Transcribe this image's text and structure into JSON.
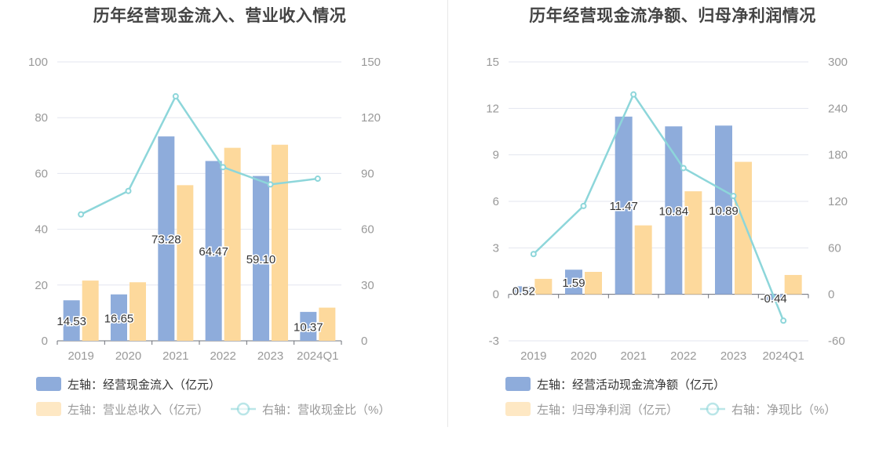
{
  "charts": [
    {
      "title": "历年经营现金流入、营业收入情况",
      "chart_data": {
        "type": "bar",
        "categories": [
          "2019",
          "2020",
          "2021",
          "2022",
          "2023",
          "2024Q1"
        ],
        "left_axis": {
          "ylim": [
            0,
            100
          ],
          "ticks": [
            "0",
            "20",
            "40",
            "60",
            "80",
            "100"
          ]
        },
        "right_axis": {
          "ylim": [
            0,
            150
          ],
          "ticks": [
            "0",
            "30",
            "60",
            "90",
            "120",
            "150"
          ]
        },
        "grid": true,
        "legend_position": "bottom-left",
        "series": [
          {
            "name": "左轴：经营现金流入（亿元）",
            "type": "bar",
            "axis": "left",
            "color": "#8eacdb",
            "values": [
              14.53,
              16.65,
              73.28,
              64.47,
              59.1,
              10.37
            ],
            "labels": [
              "14.53",
              "16.65",
              "73.28",
              "64.47",
              "59.10",
              "10.37"
            ]
          },
          {
            "name": "左轴：营业总收入（亿元）",
            "type": "bar",
            "axis": "left",
            "color": "#fdd99c",
            "values": [
              21.6,
              21.0,
              55.8,
              69.2,
              70.3,
              11.9
            ]
          },
          {
            "name": "右轴：营收现金比（%）",
            "type": "line",
            "axis": "right",
            "color": "#8dd6da",
            "values": [
              68.0,
              80.6,
              131.5,
              93.4,
              84.1,
              87.2
            ]
          }
        ]
      }
    },
    {
      "title": "历年经营现金流净额、归母净利润情况",
      "chart_data": {
        "type": "bar",
        "categories": [
          "2019",
          "2020",
          "2021",
          "2022",
          "2023",
          "2024Q1"
        ],
        "left_axis": {
          "ylim": [
            -3,
            15
          ],
          "ticks": [
            "-3",
            "0",
            "3",
            "6",
            "9",
            "12",
            "15"
          ]
        },
        "right_axis": {
          "ylim": [
            -60,
            300
          ],
          "ticks": [
            "-60",
            "0",
            "60",
            "120",
            "180",
            "240",
            "300"
          ]
        },
        "grid": true,
        "legend_position": "bottom-left",
        "series": [
          {
            "name": "左轴：经营活动现金流净额（亿元）",
            "type": "bar",
            "axis": "left",
            "color": "#8eacdb",
            "values": [
              0.52,
              1.59,
              11.47,
              10.84,
              10.89,
              -0.44
            ],
            "labels": [
              "0.52",
              "1.59",
              "11.47",
              "10.84",
              "10.89",
              "-0.44"
            ]
          },
          {
            "name": "左轴：归母净利润（亿元）",
            "type": "bar",
            "axis": "left",
            "color": "#fdd99c",
            "values": [
              1.0,
              1.45,
              4.45,
              6.65,
              8.55,
              1.25
            ]
          },
          {
            "name": "右轴：净现比（%）",
            "type": "line",
            "axis": "right",
            "color": "#8dd6da",
            "values": [
              52,
              114,
              258,
              163,
              127,
              -34
            ]
          }
        ]
      }
    }
  ]
}
